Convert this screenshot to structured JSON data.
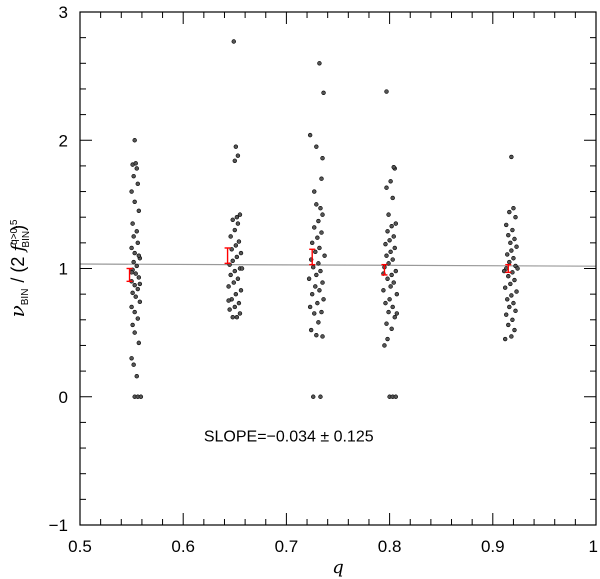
{
  "chart_data": {
    "type": "scatter",
    "title": "",
    "xlabel": "q",
    "ylabel": {
      "nu": "ν",
      "nu_sub": "BIN",
      "mid": "/ (2 ",
      "f": "f",
      "f_sup": "q>0.5",
      "f_sub": "BIN",
      "end": ")"
    },
    "xlim": [
      0.5,
      1.0
    ],
    "ylim": [
      -1,
      3
    ],
    "x_ticks": [
      0.5,
      0.6,
      0.7,
      0.8,
      0.9,
      1
    ],
    "x_tick_labels": [
      "0.5",
      "0.6",
      "0.7",
      "0.8",
      "0.9",
      "1"
    ],
    "y_ticks": [
      -1,
      0,
      1,
      2,
      3
    ],
    "y_tick_labels": [
      "−1",
      "0",
      "1",
      "2",
      "3"
    ],
    "annotation": "SLOPE=−0.034  ±  0.125",
    "fit_line": {
      "x": [
        0.5,
        1.0
      ],
      "y": [
        1.035,
        1.018
      ]
    },
    "binned_means": [
      {
        "x": 0.548,
        "y": 0.95,
        "err": 0.05
      },
      {
        "x": 0.643,
        "y": 1.1,
        "err": 0.06
      },
      {
        "x": 0.725,
        "y": 1.09,
        "err": 0.06
      },
      {
        "x": 0.795,
        "y": 0.99,
        "err": 0.04
      },
      {
        "x": 0.915,
        "y": 1.0,
        "err": 0.03
      }
    ],
    "points": [
      [
        0.553,
        0.0
      ],
      [
        0.556,
        0.0
      ],
      [
        0.559,
        0.0
      ],
      [
        0.555,
        0.16
      ],
      [
        0.552,
        0.25
      ],
      [
        0.55,
        0.3
      ],
      [
        0.557,
        0.42
      ],
      [
        0.553,
        0.5
      ],
      [
        0.551,
        0.56
      ],
      [
        0.556,
        0.61
      ],
      [
        0.553,
        0.66
      ],
      [
        0.55,
        0.7
      ],
      [
        0.558,
        0.74
      ],
      [
        0.554,
        0.78
      ],
      [
        0.551,
        0.81
      ],
      [
        0.556,
        0.84
      ],
      [
        0.553,
        0.87
      ],
      [
        0.55,
        0.9
      ],
      [
        0.557,
        0.93
      ],
      [
        0.554,
        0.96
      ],
      [
        0.551,
        0.99
      ],
      [
        0.555,
        1.02
      ],
      [
        0.552,
        1.05
      ],
      [
        0.558,
        1.08
      ],
      [
        0.553,
        1.12
      ],
      [
        0.55,
        1.16
      ],
      [
        0.556,
        1.2
      ],
      [
        0.552,
        1.25
      ],
      [
        0.555,
        1.29
      ],
      [
        0.551,
        1.35
      ],
      [
        0.557,
        1.45
      ],
      [
        0.553,
        1.52
      ],
      [
        0.55,
        1.6
      ],
      [
        0.556,
        1.66
      ],
      [
        0.552,
        1.72
      ],
      [
        0.555,
        1.78
      ],
      [
        0.551,
        1.81
      ],
      [
        0.554,
        1.82
      ],
      [
        0.553,
        2.0
      ],
      [
        0.557,
        1.1
      ],
      [
        0.55,
        0.97
      ],
      [
        0.558,
        0.88
      ],
      [
        0.648,
        0.62
      ],
      [
        0.652,
        0.62
      ],
      [
        0.655,
        0.65
      ],
      [
        0.645,
        0.68
      ],
      [
        0.65,
        0.7
      ],
      [
        0.654,
        0.73
      ],
      [
        0.647,
        0.76
      ],
      [
        0.651,
        0.8
      ],
      [
        0.656,
        0.83
      ],
      [
        0.644,
        0.86
      ],
      [
        0.649,
        0.89
      ],
      [
        0.653,
        0.92
      ],
      [
        0.646,
        0.95
      ],
      [
        0.65,
        0.98
      ],
      [
        0.655,
        1.0
      ],
      [
        0.645,
        1.03
      ],
      [
        0.648,
        1.06
      ],
      [
        0.652,
        1.09
      ],
      [
        0.656,
        1.12
      ],
      [
        0.647,
        1.15
      ],
      [
        0.651,
        1.18
      ],
      [
        0.654,
        1.21
      ],
      [
        0.646,
        1.25
      ],
      [
        0.65,
        1.3
      ],
      [
        0.653,
        1.35
      ],
      [
        0.648,
        1.38
      ],
      [
        0.652,
        1.4
      ],
      [
        0.655,
        1.42
      ],
      [
        0.65,
        1.84
      ],
      [
        0.653,
        1.88
      ],
      [
        0.651,
        1.95
      ],
      [
        0.649,
        2.77
      ],
      [
        0.657,
        1.0
      ],
      [
        0.644,
        0.75
      ],
      [
        0.726,
        0.0
      ],
      [
        0.733,
        0.0
      ],
      [
        0.729,
        0.48
      ],
      [
        0.735,
        0.47
      ],
      [
        0.724,
        0.52
      ],
      [
        0.731,
        0.58
      ],
      [
        0.727,
        0.65
      ],
      [
        0.734,
        0.66
      ],
      [
        0.723,
        0.7
      ],
      [
        0.73,
        0.73
      ],
      [
        0.736,
        0.76
      ],
      [
        0.725,
        0.8
      ],
      [
        0.732,
        0.83
      ],
      [
        0.728,
        0.86
      ],
      [
        0.735,
        0.89
      ],
      [
        0.722,
        0.92
      ],
      [
        0.729,
        0.95
      ],
      [
        0.733,
        0.98
      ],
      [
        0.726,
        1.01
      ],
      [
        0.731,
        1.04
      ],
      [
        0.724,
        1.07
      ],
      [
        0.737,
        1.1
      ],
      [
        0.728,
        1.13
      ],
      [
        0.732,
        1.16
      ],
      [
        0.725,
        1.2
      ],
      [
        0.73,
        1.24
      ],
      [
        0.734,
        1.28
      ],
      [
        0.727,
        1.32
      ],
      [
        0.731,
        1.37
      ],
      [
        0.735,
        1.42
      ],
      [
        0.733,
        1.47
      ],
      [
        0.729,
        1.5
      ],
      [
        0.727,
        1.6
      ],
      [
        0.734,
        1.7
      ],
      [
        0.735,
        1.86
      ],
      [
        0.729,
        1.95
      ],
      [
        0.723,
        2.04
      ],
      [
        0.736,
        2.37
      ],
      [
        0.732,
        2.6
      ],
      [
        0.8,
        0.0
      ],
      [
        0.803,
        0.0
      ],
      [
        0.806,
        0.0
      ],
      [
        0.795,
        0.4
      ],
      [
        0.798,
        0.45
      ],
      [
        0.802,
        0.53
      ],
      [
        0.797,
        0.57
      ],
      [
        0.805,
        0.62
      ],
      [
        0.799,
        0.66
      ],
      [
        0.803,
        0.7
      ],
      [
        0.796,
        0.73
      ],
      [
        0.8,
        0.76
      ],
      [
        0.807,
        0.8
      ],
      [
        0.794,
        0.83
      ],
      [
        0.801,
        0.86
      ],
      [
        0.804,
        0.89
      ],
      [
        0.798,
        0.92
      ],
      [
        0.802,
        0.95
      ],
      [
        0.806,
        0.98
      ],
      [
        0.795,
        1.01
      ],
      [
        0.799,
        1.04
      ],
      [
        0.803,
        1.07
      ],
      [
        0.797,
        1.1
      ],
      [
        0.801,
        1.13
      ],
      [
        0.805,
        1.16
      ],
      [
        0.796,
        1.19
      ],
      [
        0.8,
        1.22
      ],
      [
        0.804,
        1.25
      ],
      [
        0.798,
        1.29
      ],
      [
        0.802,
        1.33
      ],
      [
        0.806,
        1.35
      ],
      [
        0.799,
        1.42
      ],
      [
        0.803,
        1.55
      ],
      [
        0.797,
        1.63
      ],
      [
        0.801,
        1.68
      ],
      [
        0.805,
        1.78
      ],
      [
        0.804,
        1.79
      ],
      [
        0.797,
        2.38
      ],
      [
        0.807,
        0.65
      ],
      [
        0.794,
        0.96
      ],
      [
        0.912,
        0.45
      ],
      [
        0.918,
        0.47
      ],
      [
        0.921,
        0.52
      ],
      [
        0.915,
        0.56
      ],
      [
        0.919,
        0.6
      ],
      [
        0.913,
        0.64
      ],
      [
        0.922,
        0.67
      ],
      [
        0.916,
        0.7
      ],
      [
        0.92,
        0.73
      ],
      [
        0.914,
        0.76
      ],
      [
        0.918,
        0.79
      ],
      [
        0.923,
        0.82
      ],
      [
        0.912,
        0.85
      ],
      [
        0.917,
        0.88
      ],
      [
        0.921,
        0.91
      ],
      [
        0.915,
        0.94
      ],
      [
        0.919,
        0.97
      ],
      [
        0.913,
        1.0
      ],
      [
        0.922,
        1.02
      ],
      [
        0.916,
        1.05
      ],
      [
        0.92,
        1.08
      ],
      [
        0.914,
        1.11
      ],
      [
        0.918,
        1.14
      ],
      [
        0.923,
        1.17
      ],
      [
        0.917,
        1.2
      ],
      [
        0.921,
        1.23
      ],
      [
        0.915,
        1.26
      ],
      [
        0.919,
        1.3
      ],
      [
        0.913,
        1.34
      ],
      [
        0.922,
        1.4
      ],
      [
        0.916,
        1.44
      ],
      [
        0.92,
        1.47
      ],
      [
        0.918,
        1.87
      ],
      [
        0.924,
        1.0
      ],
      [
        0.911,
        0.98
      ]
    ],
    "colors": {
      "points": "#000000",
      "error_bars": "#ff0000",
      "fit_line": "#999999",
      "axes": "#000000"
    },
    "grid": false,
    "legend": "none"
  }
}
